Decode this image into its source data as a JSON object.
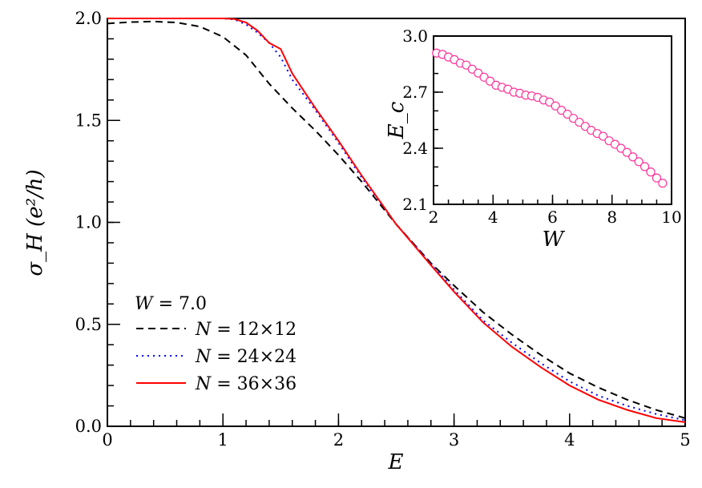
{
  "chart_data": [
    {
      "type": "line",
      "xlabel": "E",
      "ylabel": "σ_H (e²/h)",
      "xlim": [
        0,
        5
      ],
      "ylim": [
        0,
        2.0
      ],
      "xticks": [
        "0",
        "1",
        "2",
        "3",
        "4",
        "5"
      ],
      "yticks": [
        "0.0",
        "0.5",
        "1.0",
        "1.5",
        "2.0"
      ],
      "grid": false,
      "legend": {
        "placement": "bottom-left",
        "title": "W = 7.0"
      },
      "series": [
        {
          "name": "N = 12×12",
          "color": "#000000",
          "style": "dashed",
          "x": [
            0,
            0.2,
            0.4,
            0.6,
            0.8,
            1.0,
            1.2,
            1.4,
            1.6,
            1.8,
            2.0,
            2.2,
            2.5,
            2.8,
            3.0,
            3.25,
            3.5,
            3.75,
            4.0,
            4.25,
            4.5,
            4.75,
            5.0
          ],
          "y": [
            1.975,
            1.982,
            1.985,
            1.98,
            1.96,
            1.91,
            1.82,
            1.68,
            1.56,
            1.45,
            1.33,
            1.2,
            0.99,
            0.8,
            0.69,
            0.56,
            0.45,
            0.35,
            0.26,
            0.19,
            0.13,
            0.08,
            0.04
          ]
        },
        {
          "name": "N = 24×24",
          "color": "#0000ff",
          "style": "dotted",
          "x": [
            0,
            0.5,
            1.0,
            1.1,
            1.2,
            1.3,
            1.4,
            1.5,
            1.6,
            1.8,
            2.0,
            2.2,
            2.5,
            2.8,
            3.0,
            3.25,
            3.5,
            3.75,
            4.0,
            4.25,
            4.5,
            4.75,
            5.0
          ],
          "y": [
            2.0,
            2.0,
            2.0,
            1.995,
            1.97,
            1.93,
            1.88,
            1.81,
            1.7,
            1.55,
            1.39,
            1.22,
            0.99,
            0.8,
            0.67,
            0.52,
            0.41,
            0.31,
            0.22,
            0.15,
            0.1,
            0.06,
            0.03
          ]
        },
        {
          "name": "N = 36×36",
          "color": "#ff0000",
          "style": "solid",
          "x": [
            0,
            0.5,
            1.0,
            1.1,
            1.2,
            1.3,
            1.4,
            1.5,
            1.6,
            1.8,
            2.0,
            2.2,
            2.5,
            2.8,
            3.0,
            3.25,
            3.5,
            3.75,
            4.0,
            4.25,
            4.5,
            4.75,
            5.0
          ],
          "y": [
            2.0,
            2.0,
            2.0,
            1.997,
            1.98,
            1.94,
            1.88,
            1.85,
            1.73,
            1.56,
            1.4,
            1.23,
            0.99,
            0.79,
            0.66,
            0.51,
            0.39,
            0.29,
            0.2,
            0.13,
            0.08,
            0.04,
            0.02
          ]
        }
      ]
    },
    {
      "type": "scatter",
      "xlabel": "W",
      "ylabel": "E_c",
      "xlim": [
        2,
        10
      ],
      "ylim": [
        2.1,
        3.0
      ],
      "xticks": [
        "2",
        "4",
        "6",
        "8",
        "10"
      ],
      "yticks": [
        "2.1",
        "2.4",
        "2.7",
        "3.0"
      ],
      "marker": "open-circle",
      "color": "#ff3399",
      "x": [
        2.1,
        2.3,
        2.5,
        2.7,
        2.9,
        3.1,
        3.3,
        3.5,
        3.7,
        3.9,
        4.1,
        4.3,
        4.5,
        4.7,
        4.9,
        5.1,
        5.3,
        5.5,
        5.7,
        5.9,
        6.1,
        6.3,
        6.5,
        6.7,
        6.9,
        7.1,
        7.3,
        7.5,
        7.7,
        7.9,
        8.1,
        8.3,
        8.5,
        8.7,
        8.9,
        9.1,
        9.3,
        9.5,
        9.7
      ],
      "y": [
        2.909,
        2.902,
        2.888,
        2.874,
        2.855,
        2.845,
        2.823,
        2.802,
        2.78,
        2.759,
        2.737,
        2.726,
        2.716,
        2.7,
        2.694,
        2.684,
        2.68,
        2.672,
        2.658,
        2.647,
        2.626,
        2.603,
        2.582,
        2.56,
        2.539,
        2.517,
        2.496,
        2.479,
        2.464,
        2.44,
        2.421,
        2.4,
        2.378,
        2.354,
        2.328,
        2.302,
        2.273,
        2.241,
        2.213
      ]
    }
  ]
}
